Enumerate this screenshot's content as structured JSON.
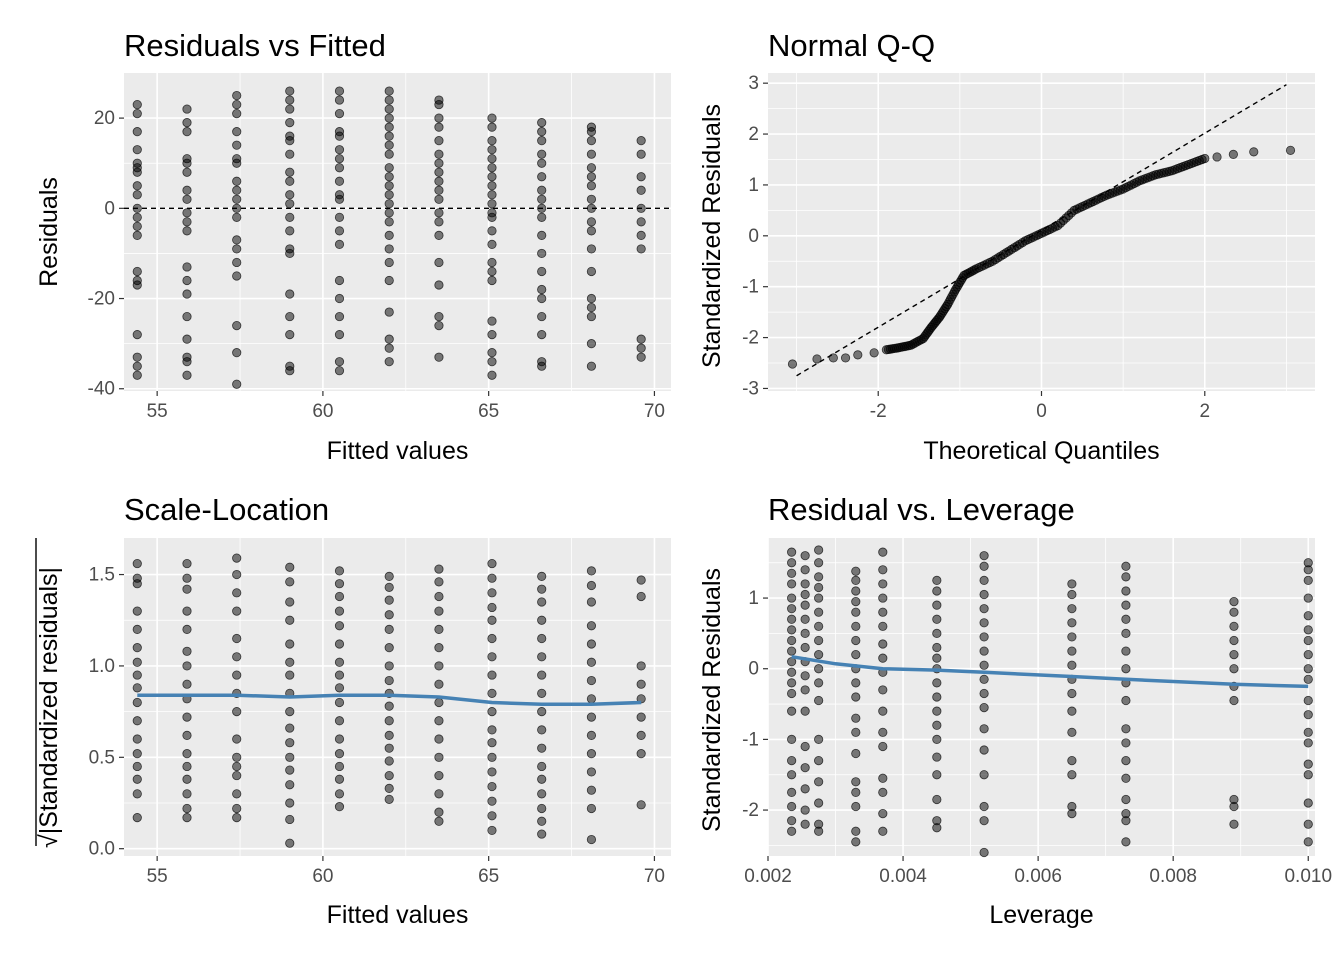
{
  "chart_data": [
    {
      "id": "rvf",
      "type": "scatter",
      "title": "Residuals vs Fitted",
      "xlabel": "Fitted values",
      "ylabel": "Residuals",
      "xlim": [
        54,
        70.5
      ],
      "ylim": [
        -40.5,
        30
      ],
      "xticks": [
        55,
        60,
        65,
        70
      ],
      "yticks": [
        -40,
        -20,
        0,
        20
      ],
      "reference_line": {
        "style": "dashed",
        "y": 0
      },
      "x_levels": [
        54.4,
        55.9,
        57.4,
        59.0,
        60.5,
        62.0,
        63.5,
        65.1,
        66.6,
        68.1,
        69.6
      ],
      "points_by_x": [
        [
          23,
          21,
          17,
          13,
          10,
          9,
          8,
          5,
          3,
          0,
          -2,
          -4,
          -6,
          -14,
          -16,
          -17,
          -28,
          -33,
          -35,
          -37
        ],
        [
          22,
          19,
          17,
          11,
          10,
          8,
          4,
          2,
          -1,
          -3,
          -5,
          -13,
          -16,
          -19,
          -24,
          -29,
          -33,
          -34,
          -37
        ],
        [
          25,
          23,
          21,
          17,
          14,
          11,
          10,
          6,
          4,
          2,
          0,
          -2,
          -7,
          -9,
          -12,
          -15,
          -26,
          -32,
          -39
        ],
        [
          26,
          24,
          22,
          19,
          16,
          15,
          12,
          8,
          6,
          3,
          1,
          -2,
          -5,
          -9,
          -10,
          -19,
          -24,
          -28,
          -35,
          -36
        ],
        [
          26,
          24,
          21,
          17,
          16,
          13,
          11,
          9,
          6,
          3,
          2,
          -2,
          -5,
          -8,
          -16,
          -20,
          -24,
          -28,
          -34,
          -36
        ],
        [
          26,
          24,
          22,
          20,
          18,
          16,
          14,
          12,
          9,
          7,
          5,
          3,
          1,
          -1,
          -3,
          -6,
          -9,
          -12,
          -16,
          -23,
          -29,
          -31,
          -34
        ],
        [
          24,
          23,
          20,
          18,
          15,
          12,
          10,
          8,
          6,
          4,
          2,
          -1,
          -3,
          -6,
          -12,
          -17,
          -24,
          -26,
          -33
        ],
        [
          20,
          18,
          15,
          13,
          11,
          9,
          7,
          5,
          3,
          1,
          -1,
          -2,
          -5,
          -8,
          -12,
          -14,
          -16,
          -25,
          -28,
          -32,
          -34,
          -37
        ],
        [
          19,
          17,
          15,
          12,
          10,
          7,
          4,
          2,
          0,
          -2,
          -6,
          -10,
          -14,
          -18,
          -20,
          -24,
          -28,
          -34,
          -35
        ],
        [
          18,
          17,
          15,
          12,
          9,
          7,
          5,
          2,
          0,
          -3,
          -5,
          -9,
          -14,
          -20,
          -22,
          -24,
          -30,
          -35
        ],
        [
          15,
          12,
          7,
          4,
          0,
          -3,
          -6,
          -9,
          -29,
          -31,
          -33
        ]
      ]
    },
    {
      "id": "qq",
      "type": "scatter",
      "title": "Normal Q-Q",
      "xlabel": "Theoretical Quantiles",
      "ylabel": "Standardized Residuals",
      "xlim": [
        -3.35,
        3.35
      ],
      "ylim": [
        -3.05,
        3.2
      ],
      "xticks": [
        -2,
        0,
        2
      ],
      "yticks": [
        -3,
        -2,
        -1,
        0,
        1,
        2,
        3
      ],
      "reference_line": {
        "style": "dashed",
        "from": [
          -3.0,
          -2.75
        ],
        "to": [
          3.0,
          2.97
        ]
      },
      "curve_points": [
        [
          -3.05,
          -2.52
        ],
        [
          -2.75,
          -2.42
        ],
        [
          -2.55,
          -2.4
        ],
        [
          -2.4,
          -2.4
        ],
        [
          -2.25,
          -2.34
        ],
        [
          -2.05,
          -2.3
        ],
        [
          -1.9,
          -2.24
        ],
        [
          -1.75,
          -2.2
        ],
        [
          -1.6,
          -2.15
        ],
        [
          -1.45,
          -2.02
        ],
        [
          -1.35,
          -1.8
        ],
        [
          -1.25,
          -1.6
        ],
        [
          -1.15,
          -1.35
        ],
        [
          -1.05,
          -1.05
        ],
        [
          -0.95,
          -0.78
        ],
        [
          -0.8,
          -0.65
        ],
        [
          -0.6,
          -0.5
        ],
        [
          -0.4,
          -0.3
        ],
        [
          -0.2,
          -0.1
        ],
        [
          0.0,
          0.05
        ],
        [
          0.2,
          0.2
        ],
        [
          0.4,
          0.5
        ],
        [
          0.6,
          0.65
        ],
        [
          0.8,
          0.8
        ],
        [
          1.0,
          0.92
        ],
        [
          1.2,
          1.08
        ],
        [
          1.4,
          1.2
        ],
        [
          1.6,
          1.28
        ],
        [
          1.8,
          1.4
        ],
        [
          2.0,
          1.52
        ],
        [
          2.15,
          1.55
        ],
        [
          2.35,
          1.6
        ],
        [
          2.6,
          1.65
        ],
        [
          3.05,
          1.68
        ]
      ]
    },
    {
      "id": "sl",
      "type": "scatter",
      "title": "Scale-Location",
      "xlabel": "Fitted values",
      "ylabel": "|Standardized residuals|",
      "ylabel_prefix": "√",
      "xlim": [
        54,
        70.5
      ],
      "ylim": [
        -0.04,
        1.7
      ],
      "xticks": [
        55,
        60,
        65,
        70
      ],
      "yticks": [
        0.0,
        0.5,
        1.0,
        1.5
      ],
      "ytick_labels": [
        "0.0",
        "0.5",
        "1.0",
        "1.5"
      ],
      "smooth_color": "#4682b4",
      "smooth": [
        [
          54.4,
          0.84
        ],
        [
          57.4,
          0.84
        ],
        [
          59.0,
          0.83
        ],
        [
          60.5,
          0.84
        ],
        [
          62.0,
          0.84
        ],
        [
          63.5,
          0.83
        ],
        [
          65.1,
          0.8
        ],
        [
          66.6,
          0.79
        ],
        [
          68.1,
          0.79
        ],
        [
          69.6,
          0.8
        ]
      ],
      "x_levels": [
        54.4,
        55.9,
        57.4,
        59.0,
        60.5,
        62.0,
        63.5,
        65.1,
        66.6,
        68.1,
        69.6
      ],
      "points_by_x": [
        [
          1.56,
          1.48,
          1.45,
          1.3,
          1.2,
          1.1,
          1.02,
          0.95,
          0.88,
          0.8,
          0.7,
          0.6,
          0.52,
          0.45,
          0.38,
          0.3,
          0.17
        ],
        [
          1.56,
          1.48,
          1.42,
          1.3,
          1.2,
          1.08,
          1.0,
          0.9,
          0.82,
          0.72,
          0.62,
          0.52,
          0.45,
          0.38,
          0.3,
          0.22,
          0.17
        ],
        [
          1.59,
          1.5,
          1.4,
          1.3,
          1.15,
          1.05,
          0.95,
          0.85,
          0.75,
          0.6,
          0.5,
          0.45,
          0.4,
          0.3,
          0.22,
          0.17
        ],
        [
          1.54,
          1.46,
          1.35,
          1.25,
          1.12,
          1.02,
          0.95,
          0.85,
          0.75,
          0.66,
          0.58,
          0.5,
          0.43,
          0.35,
          0.25,
          0.16,
          0.03
        ],
        [
          1.52,
          1.45,
          1.38,
          1.3,
          1.22,
          1.12,
          1.02,
          0.95,
          0.88,
          0.8,
          0.7,
          0.6,
          0.52,
          0.45,
          0.38,
          0.3,
          0.23
        ],
        [
          1.49,
          1.43,
          1.36,
          1.28,
          1.2,
          1.1,
          1.0,
          0.92,
          0.85,
          0.78,
          0.7,
          0.62,
          0.55,
          0.48,
          0.4,
          0.33,
          0.27
        ],
        [
          1.53,
          1.46,
          1.38,
          1.3,
          1.2,
          1.1,
          1.0,
          0.9,
          0.8,
          0.7,
          0.6,
          0.5,
          0.4,
          0.3,
          0.2,
          0.15
        ],
        [
          1.56,
          1.48,
          1.4,
          1.32,
          1.25,
          1.15,
          1.05,
          0.95,
          0.85,
          0.75,
          0.65,
          0.58,
          0.5,
          0.42,
          0.34,
          0.26,
          0.18,
          0.1
        ],
        [
          1.49,
          1.42,
          1.35,
          1.25,
          1.15,
          1.05,
          0.95,
          0.85,
          0.75,
          0.65,
          0.55,
          0.45,
          0.38,
          0.3,
          0.22,
          0.15,
          0.08
        ],
        [
          1.52,
          1.44,
          1.35,
          1.22,
          1.12,
          1.02,
          0.92,
          0.82,
          0.72,
          0.62,
          0.52,
          0.42,
          0.32,
          0.22,
          0.05
        ],
        [
          1.47,
          1.38,
          1.0,
          0.9,
          0.82,
          0.72,
          0.62,
          0.52,
          0.24
        ]
      ]
    },
    {
      "id": "rvl",
      "type": "scatter",
      "title": "Residual vs. Leverage",
      "xlabel": "Leverage",
      "ylabel": "Standardized Residuals",
      "xlim": [
        0.002,
        0.0101
      ],
      "ylim": [
        -2.65,
        1.85
      ],
      "xticks": [
        0.002,
        0.004,
        0.006,
        0.008,
        0.01
      ],
      "xtick_labels": [
        "0.002",
        "0.004",
        "0.006",
        "0.008",
        "0.010"
      ],
      "yticks": [
        -2,
        -1,
        0,
        1
      ],
      "smooth_color": "#4682b4",
      "smooth": [
        [
          0.00235,
          0.17
        ],
        [
          0.003,
          0.07
        ],
        [
          0.0037,
          0.0
        ],
        [
          0.0045,
          -0.02
        ],
        [
          0.0052,
          -0.05
        ],
        [
          0.0065,
          -0.11
        ],
        [
          0.0073,
          -0.15
        ],
        [
          0.0089,
          -0.22
        ],
        [
          0.01,
          -0.25
        ]
      ],
      "x_levels": [
        0.00235,
        0.00255,
        0.00275,
        0.0033,
        0.0037,
        0.0045,
        0.0052,
        0.0065,
        0.0073,
        0.0089,
        0.01
      ],
      "points_by_x": [
        [
          1.65,
          1.5,
          1.35,
          1.2,
          1.0,
          0.85,
          0.7,
          0.55,
          0.4,
          0.25,
          0.1,
          -0.05,
          -0.2,
          -0.35,
          -0.6,
          -1.0,
          -1.3,
          -1.5,
          -1.75,
          -1.95,
          -2.15,
          -2.3
        ],
        [
          1.6,
          1.4,
          1.2,
          1.05,
          0.9,
          0.7,
          0.5,
          0.3,
          0.1,
          -0.1,
          -0.3,
          -0.6,
          -1.1,
          -1.4,
          -1.7,
          -2.0,
          -2.2
        ],
        [
          1.68,
          1.5,
          1.3,
          1.15,
          1.0,
          0.8,
          0.6,
          0.4,
          0.2,
          0.0,
          -0.2,
          -0.45,
          -1.0,
          -1.3,
          -1.6,
          -1.9,
          -2.2,
          -2.3
        ],
        [
          1.38,
          1.25,
          1.1,
          0.95,
          0.8,
          0.6,
          0.4,
          0.2,
          0.0,
          -0.2,
          -0.4,
          -0.7,
          -0.9,
          -1.2,
          -1.6,
          -1.75,
          -1.95,
          -2.3,
          -2.45
        ],
        [
          1.65,
          1.4,
          1.2,
          1.0,
          0.8,
          0.6,
          0.35,
          0.15,
          -0.05,
          -0.3,
          -0.6,
          -0.9,
          -1.1,
          -1.55,
          -1.75,
          -2.05,
          -2.3
        ],
        [
          1.25,
          1.1,
          0.9,
          0.7,
          0.5,
          0.3,
          0.15,
          0.0,
          -0.2,
          -0.4,
          -0.6,
          -0.8,
          -1.0,
          -1.25,
          -1.5,
          -1.85,
          -2.15,
          -2.25
        ],
        [
          1.6,
          1.45,
          1.25,
          1.05,
          0.85,
          0.65,
          0.45,
          0.25,
          0.05,
          -0.15,
          -0.35,
          -0.55,
          -0.85,
          -1.15,
          -1.5,
          -1.95,
          -2.15,
          -2.6
        ],
        [
          1.2,
          1.05,
          0.85,
          0.65,
          0.45,
          0.25,
          0.05,
          -0.15,
          -0.35,
          -0.6,
          -0.9,
          -1.3,
          -1.5,
          -1.95,
          -2.05
        ],
        [
          1.45,
          1.3,
          1.1,
          0.9,
          0.7,
          0.5,
          0.25,
          0.0,
          -0.2,
          -0.45,
          -0.85,
          -1.05,
          -1.3,
          -1.55,
          -1.85,
          -2.05,
          -2.15,
          -2.45
        ],
        [
          0.95,
          0.8,
          0.6,
          0.4,
          0.2,
          0.0,
          -0.25,
          -0.45,
          -1.85,
          -1.95,
          -2.2
        ],
        [
          1.5,
          1.4,
          1.25,
          1.0,
          0.75,
          0.55,
          0.4,
          0.2,
          0.0,
          -0.15,
          -0.45,
          -0.65,
          -0.9,
          -1.05,
          -1.35,
          -1.5,
          -1.9,
          -2.2,
          -2.45
        ]
      ]
    }
  ]
}
